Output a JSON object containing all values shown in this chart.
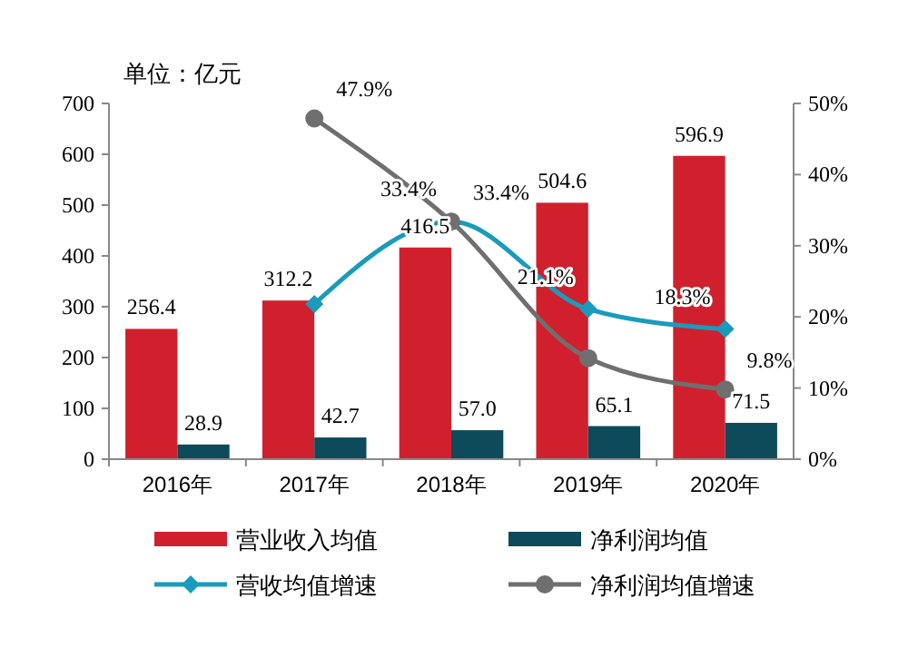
{
  "chart_data": {
    "type": "bar",
    "categories": [
      "2016年",
      "2017年",
      "2018年",
      "2019年",
      "2020年"
    ],
    "series": [
      {
        "name": "营业收入均值",
        "color": "#d0202e",
        "values": [
          256.4,
          312.2,
          416.5,
          504.6,
          596.9
        ],
        "value_labels": [
          "256.4",
          "312.2",
          "416.5",
          "504.6",
          "596.9"
        ]
      },
      {
        "name": "净利润均值",
        "color": "#0d4a5a",
        "values": [
          28.9,
          42.7,
          57.0,
          65.1,
          71.5
        ],
        "value_labels": [
          "28.9",
          "42.7",
          "57.0",
          "65.1",
          "71.5"
        ]
      },
      {
        "name": "营收均值增速",
        "type": "line",
        "axis": "y2",
        "color": "#1a9bbb",
        "marker": "diamond",
        "values": [
          null,
          21.8,
          33.4,
          21.1,
          18.3
        ],
        "value_labels": [
          null,
          null,
          "33.4%",
          "21.1%",
          "18.3%"
        ]
      },
      {
        "name": "净利润均值增速",
        "type": "line",
        "axis": "y2",
        "color": "#6f6f6f",
        "marker": "circle",
        "values": [
          null,
          47.9,
          33.4,
          14.2,
          9.8
        ],
        "value_labels": [
          null,
          "47.9%",
          "33.4%",
          null,
          "9.8%"
        ]
      }
    ],
    "ylim": [
      0,
      700
    ],
    "yticks": [
      0,
      100,
      200,
      300,
      400,
      500,
      600,
      700
    ],
    "y2lim": [
      0,
      50
    ],
    "y2ticks": [
      {
        "value": 0,
        "label": "0%"
      },
      {
        "value": 10,
        "label": "10%"
      },
      {
        "value": 20,
        "label": "20%"
      },
      {
        "value": 30,
        "label": "30%"
      },
      {
        "value": 40,
        "label": "40%"
      },
      {
        "value": 50,
        "label": "50%"
      }
    ],
    "annotations": [
      "单位：亿元"
    ],
    "legend": "bottom",
    "grid": false
  }
}
